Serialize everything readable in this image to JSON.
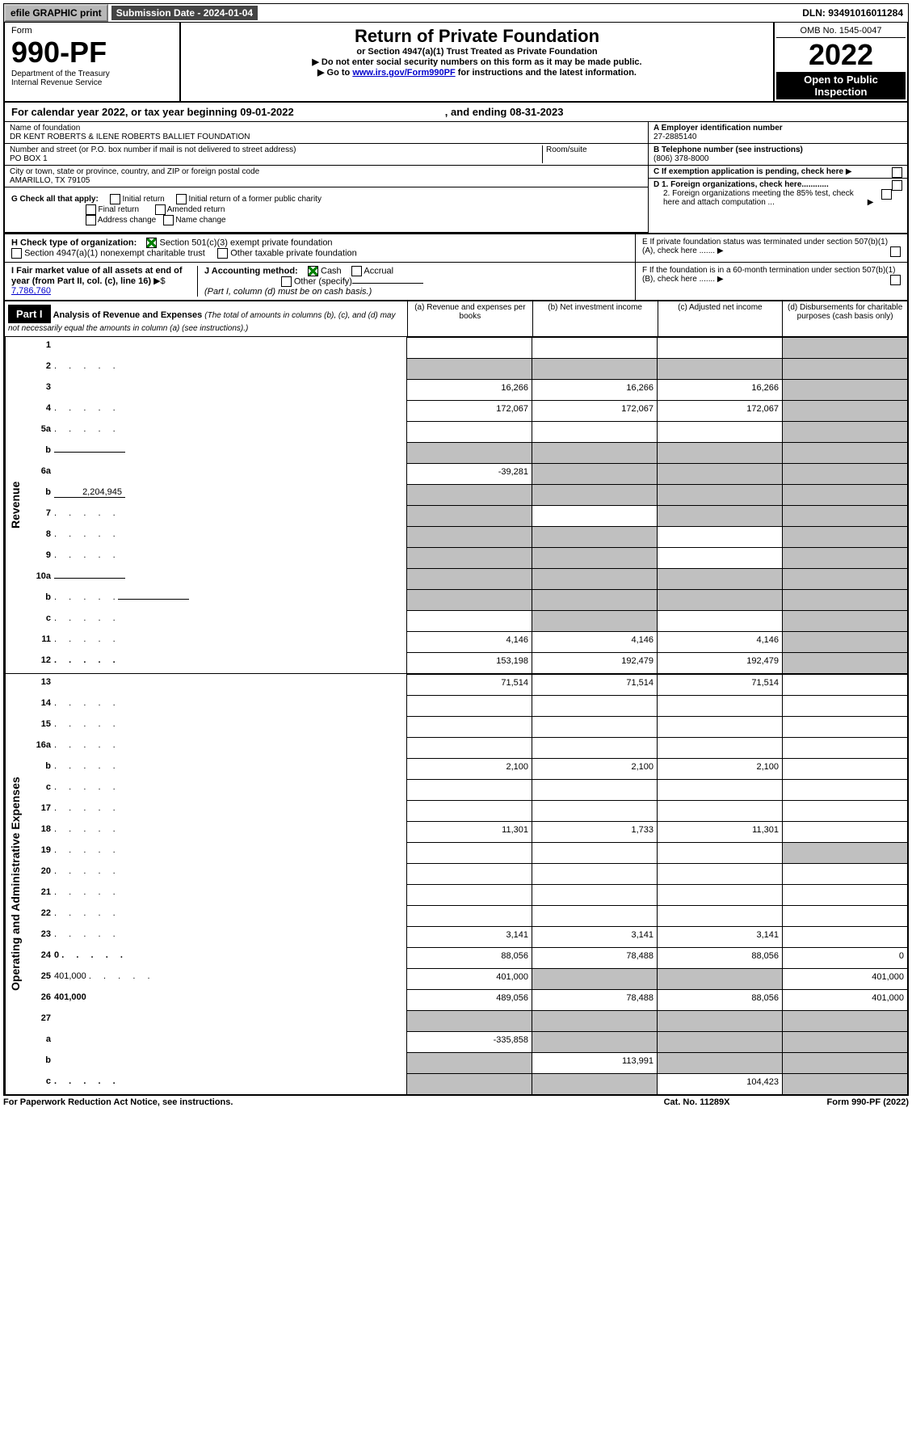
{
  "topBar": {
    "efile": "efile GRAPHIC print",
    "submission": "Submission Date - 2024-01-04",
    "dln": "DLN: 93491016011284"
  },
  "header": {
    "form": "Form",
    "formNum": "990-PF",
    "dept": "Department of the Treasury",
    "irs": "Internal Revenue Service",
    "title": "Return of Private Foundation",
    "subtitle": "or Section 4947(a)(1) Trust Treated as Private Foundation",
    "note1": "▶ Do not enter social security numbers on this form as it may be made public.",
    "note2prefix": "▶ Go to ",
    "note2link": "www.irs.gov/Form990PF",
    "note2suffix": " for instructions and the latest information.",
    "omb": "OMB No. 1545-0047",
    "year": "2022",
    "openPublic": "Open to Public Inspection"
  },
  "calYear": {
    "prefix": "For calendar year 2022, or tax year beginning ",
    "begin": "09-01-2022",
    "mid": " , and ending ",
    "end": "08-31-2023"
  },
  "entity": {
    "nameLabel": "Name of foundation",
    "name": "DR KENT ROBERTS & ILENE ROBERTS BALLIET FOUNDATION",
    "addrLabel": "Number and street (or P.O. box number if mail is not delivered to street address)",
    "addr": "PO BOX 1",
    "roomLabel": "Room/suite",
    "cityLabel": "City or town, state or province, country, and ZIP or foreign postal code",
    "city": "AMARILLO, TX  79105",
    "aLabel": "A Employer identification number",
    "ein": "27-2885140",
    "bLabel": "B Telephone number (see instructions)",
    "phone": "(806) 378-8000",
    "cLabel": "C If exemption application is pending, check here",
    "d1": "D 1. Foreign organizations, check here............",
    "d2": "2. Foreign organizations meeting the 85% test, check here and attach computation ...",
    "eLabel": "E  If private foundation status was terminated under section 507(b)(1)(A), check here .......",
    "fLabel": "F  If the foundation is in a 60-month termination under section 507(b)(1)(B), check here .......",
    "gLabel": "G Check all that apply:",
    "gInitial": "Initial return",
    "gInitialFormer": "Initial return of a former public charity",
    "gFinal": "Final return",
    "gAmended": "Amended return",
    "gAddress": "Address change",
    "gName": "Name change",
    "hLabel": "H Check type of organization:",
    "h501c3": "Section 501(c)(3) exempt private foundation",
    "h4947": "Section 4947(a)(1) nonexempt charitable trust",
    "hOther": "Other taxable private foundation",
    "iLabel": "I Fair market value of all assets at end of year (from Part II, col. (c), line 16)",
    "iAmount": "7,786,760",
    "jLabel": "J Accounting method:",
    "jCash": "Cash",
    "jAccrual": "Accrual",
    "jOther": "Other (specify)",
    "jNote": "(Part I, column (d) must be on cash basis.)"
  },
  "part1": {
    "label": "Part I",
    "title": "Analysis of Revenue and Expenses",
    "titleNote": "(The total of amounts in columns (b), (c), and (d) may not necessarily equal the amounts in column (a) (see instructions).)",
    "colA": "(a)   Revenue and expenses per books",
    "colB": "(b)   Net investment income",
    "colC": "(c)   Adjusted net income",
    "colD": "(d)   Disbursements for charitable purposes (cash basis only)"
  },
  "sideLabels": {
    "revenue": "Revenue",
    "expenses": "Operating and Administrative Expenses"
  },
  "rows": [
    {
      "n": "1",
      "d": "",
      "a": "",
      "b": "",
      "c": "",
      "dg": true
    },
    {
      "n": "2",
      "d": "",
      "dots": true,
      "a": "",
      "b": "",
      "c": "",
      "ag": true,
      "bg": true,
      "cg": true,
      "dg": true
    },
    {
      "n": "3",
      "d": "",
      "a": "16,266",
      "b": "16,266",
      "c": "16,266",
      "dg": true
    },
    {
      "n": "4",
      "d": "",
      "dots": true,
      "a": "172,067",
      "b": "172,067",
      "c": "172,067",
      "dg": true
    },
    {
      "n": "5a",
      "d": "",
      "dots": true,
      "a": "",
      "b": "",
      "c": "",
      "dg": true
    },
    {
      "n": "b",
      "d": "",
      "inline": "",
      "a": "",
      "b": "",
      "c": "",
      "ag": true,
      "bg": true,
      "cg": true,
      "dg": true
    },
    {
      "n": "6a",
      "d": "",
      "a": "-39,281",
      "b": "",
      "c": "",
      "bg": true,
      "cg": true,
      "dg": true
    },
    {
      "n": "b",
      "d": "",
      "inline": "2,204,945",
      "a": "",
      "b": "",
      "c": "",
      "ag": true,
      "bg": true,
      "cg": true,
      "dg": true
    },
    {
      "n": "7",
      "d": "",
      "dots": true,
      "a": "",
      "b": "",
      "c": "",
      "ag": true,
      "cg": true,
      "dg": true
    },
    {
      "n": "8",
      "d": "",
      "dots": true,
      "a": "",
      "b": "",
      "c": "",
      "ag": true,
      "bg": true,
      "dg": true
    },
    {
      "n": "9",
      "d": "",
      "dots": true,
      "a": "",
      "b": "",
      "c": "",
      "ag": true,
      "bg": true,
      "dg": true
    },
    {
      "n": "10a",
      "d": "",
      "inline": "",
      "a": "",
      "b": "",
      "c": "",
      "ag": true,
      "bg": true,
      "cg": true,
      "dg": true
    },
    {
      "n": "b",
      "d": "",
      "dots": true,
      "inline": "",
      "a": "",
      "b": "",
      "c": "",
      "ag": true,
      "bg": true,
      "cg": true,
      "dg": true
    },
    {
      "n": "c",
      "d": "",
      "dots": true,
      "a": "",
      "b": "",
      "c": "",
      "bg": true,
      "dg": true
    },
    {
      "n": "11",
      "d": "",
      "dots": true,
      "a": "4,146",
      "b": "4,146",
      "c": "4,146",
      "dg": true
    },
    {
      "n": "12",
      "d": "",
      "dots": true,
      "bold": true,
      "a": "153,198",
      "b": "192,479",
      "c": "192,479",
      "dg": true
    }
  ],
  "expRows": [
    {
      "n": "13",
      "d": "",
      "a": "71,514",
      "b": "71,514",
      "c": "71,514"
    },
    {
      "n": "14",
      "d": "",
      "dots": true,
      "a": "",
      "b": "",
      "c": ""
    },
    {
      "n": "15",
      "d": "",
      "dots": true,
      "a": "",
      "b": "",
      "c": ""
    },
    {
      "n": "16a",
      "d": "",
      "dots": true,
      "a": "",
      "b": "",
      "c": ""
    },
    {
      "n": "b",
      "d": "",
      "dots": true,
      "a": "2,100",
      "b": "2,100",
      "c": "2,100"
    },
    {
      "n": "c",
      "d": "",
      "dots": true,
      "a": "",
      "b": "",
      "c": ""
    },
    {
      "n": "17",
      "d": "",
      "dots": true,
      "a": "",
      "b": "",
      "c": ""
    },
    {
      "n": "18",
      "d": "",
      "dots": true,
      "a": "11,301",
      "b": "1,733",
      "c": "11,301"
    },
    {
      "n": "19",
      "d": "",
      "dots": true,
      "a": "",
      "b": "",
      "c": "",
      "dg": true
    },
    {
      "n": "20",
      "d": "",
      "dots": true,
      "a": "",
      "b": "",
      "c": ""
    },
    {
      "n": "21",
      "d": "",
      "dots": true,
      "a": "",
      "b": "",
      "c": ""
    },
    {
      "n": "22",
      "d": "",
      "dots": true,
      "a": "",
      "b": "",
      "c": ""
    },
    {
      "n": "23",
      "d": "",
      "dots": true,
      "a": "3,141",
      "b": "3,141",
      "c": "3,141"
    },
    {
      "n": "24",
      "d": "0",
      "dots": true,
      "bold": true,
      "a": "88,056",
      "b": "78,488",
      "c": "88,056"
    },
    {
      "n": "25",
      "d": "401,000",
      "dots": true,
      "a": "401,000",
      "b": "",
      "c": "",
      "bg": true,
      "cg": true
    },
    {
      "n": "26",
      "d": "401,000",
      "bold": true,
      "a": "489,056",
      "b": "78,488",
      "c": "88,056"
    },
    {
      "n": "27",
      "d": "",
      "a": "",
      "b": "",
      "c": "",
      "ag": true,
      "bg": true,
      "cg": true,
      "dg": true
    },
    {
      "n": "a",
      "d": "",
      "bold": true,
      "a": "-335,858",
      "b": "",
      "c": "",
      "bg": true,
      "cg": true,
      "dg": true
    },
    {
      "n": "b",
      "d": "",
      "bold": true,
      "a": "",
      "b": "113,991",
      "c": "",
      "ag": true,
      "cg": true,
      "dg": true
    },
    {
      "n": "c",
      "d": "",
      "dots": true,
      "bold": true,
      "a": "",
      "b": "",
      "c": "104,423",
      "ag": true,
      "bg": true,
      "dg": true
    }
  ],
  "footer": {
    "left": "For Paperwork Reduction Act Notice, see instructions.",
    "mid": "Cat. No. 11289X",
    "right": "Form 990-PF (2022)"
  }
}
